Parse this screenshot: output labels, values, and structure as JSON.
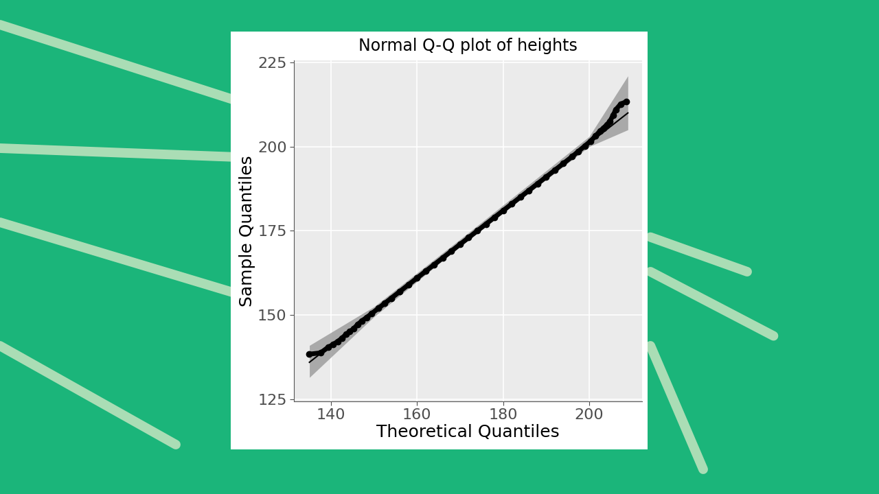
{
  "chart_data": {
    "type": "qq",
    "title": "Normal Q-Q plot of heights",
    "x_label": "Theoretical Quantiles",
    "y_label": "Sample Quantiles",
    "x": [
      134.9,
      137.6,
      139.3,
      140.5,
      141.6,
      142.6,
      143.5,
      144.4,
      145.3,
      146.2,
      147.2,
      148.3,
      149.5,
      151,
      152.5,
      154,
      156,
      158,
      160,
      162,
      164,
      166,
      168,
      170,
      172,
      174,
      176,
      178,
      180,
      182,
      184,
      186,
      188,
      190,
      192,
      194,
      196,
      197.5,
      199,
      200.3,
      201.5,
      202.5,
      203.3,
      204.1,
      204.8,
      205.6,
      206.2,
      207.3,
      208.7
    ],
    "values": [
      138.4,
      138.8,
      140.4,
      141.3,
      142.2,
      143.2,
      144.3,
      145.1,
      146.0,
      147.2,
      148.3,
      149.3,
      150.5,
      152.0,
      153.5,
      155,
      157,
      159,
      161,
      163,
      165,
      167,
      169,
      171,
      173,
      175,
      177,
      179,
      181,
      183,
      185,
      187,
      189,
      191,
      193,
      195,
      197,
      198.6,
      200.2,
      201.6,
      203.2,
      204.6,
      205.5,
      206.5,
      207.5,
      209.4,
      211.0,
      212.6,
      213.4
    ],
    "reference_line": {
      "x": [
        135,
        209
      ],
      "y": [
        136,
        210
      ]
    },
    "band": {
      "x": [
        135,
        150,
        172,
        200,
        209
      ],
      "lower": [
        131.5,
        149.5,
        172.5,
        200,
        205
      ],
      "upper": [
        141,
        152.5,
        174.5,
        203,
        221
      ]
    },
    "color": "#000000",
    "marker": "o",
    "xlim": [
      131.4,
      212.3
    ],
    "ylim": [
      124.4,
      225.6
    ],
    "xticks": [
      140,
      160,
      180,
      200
    ],
    "yticks": [
      125,
      150,
      175,
      200,
      225
    ],
    "grid": true
  }
}
